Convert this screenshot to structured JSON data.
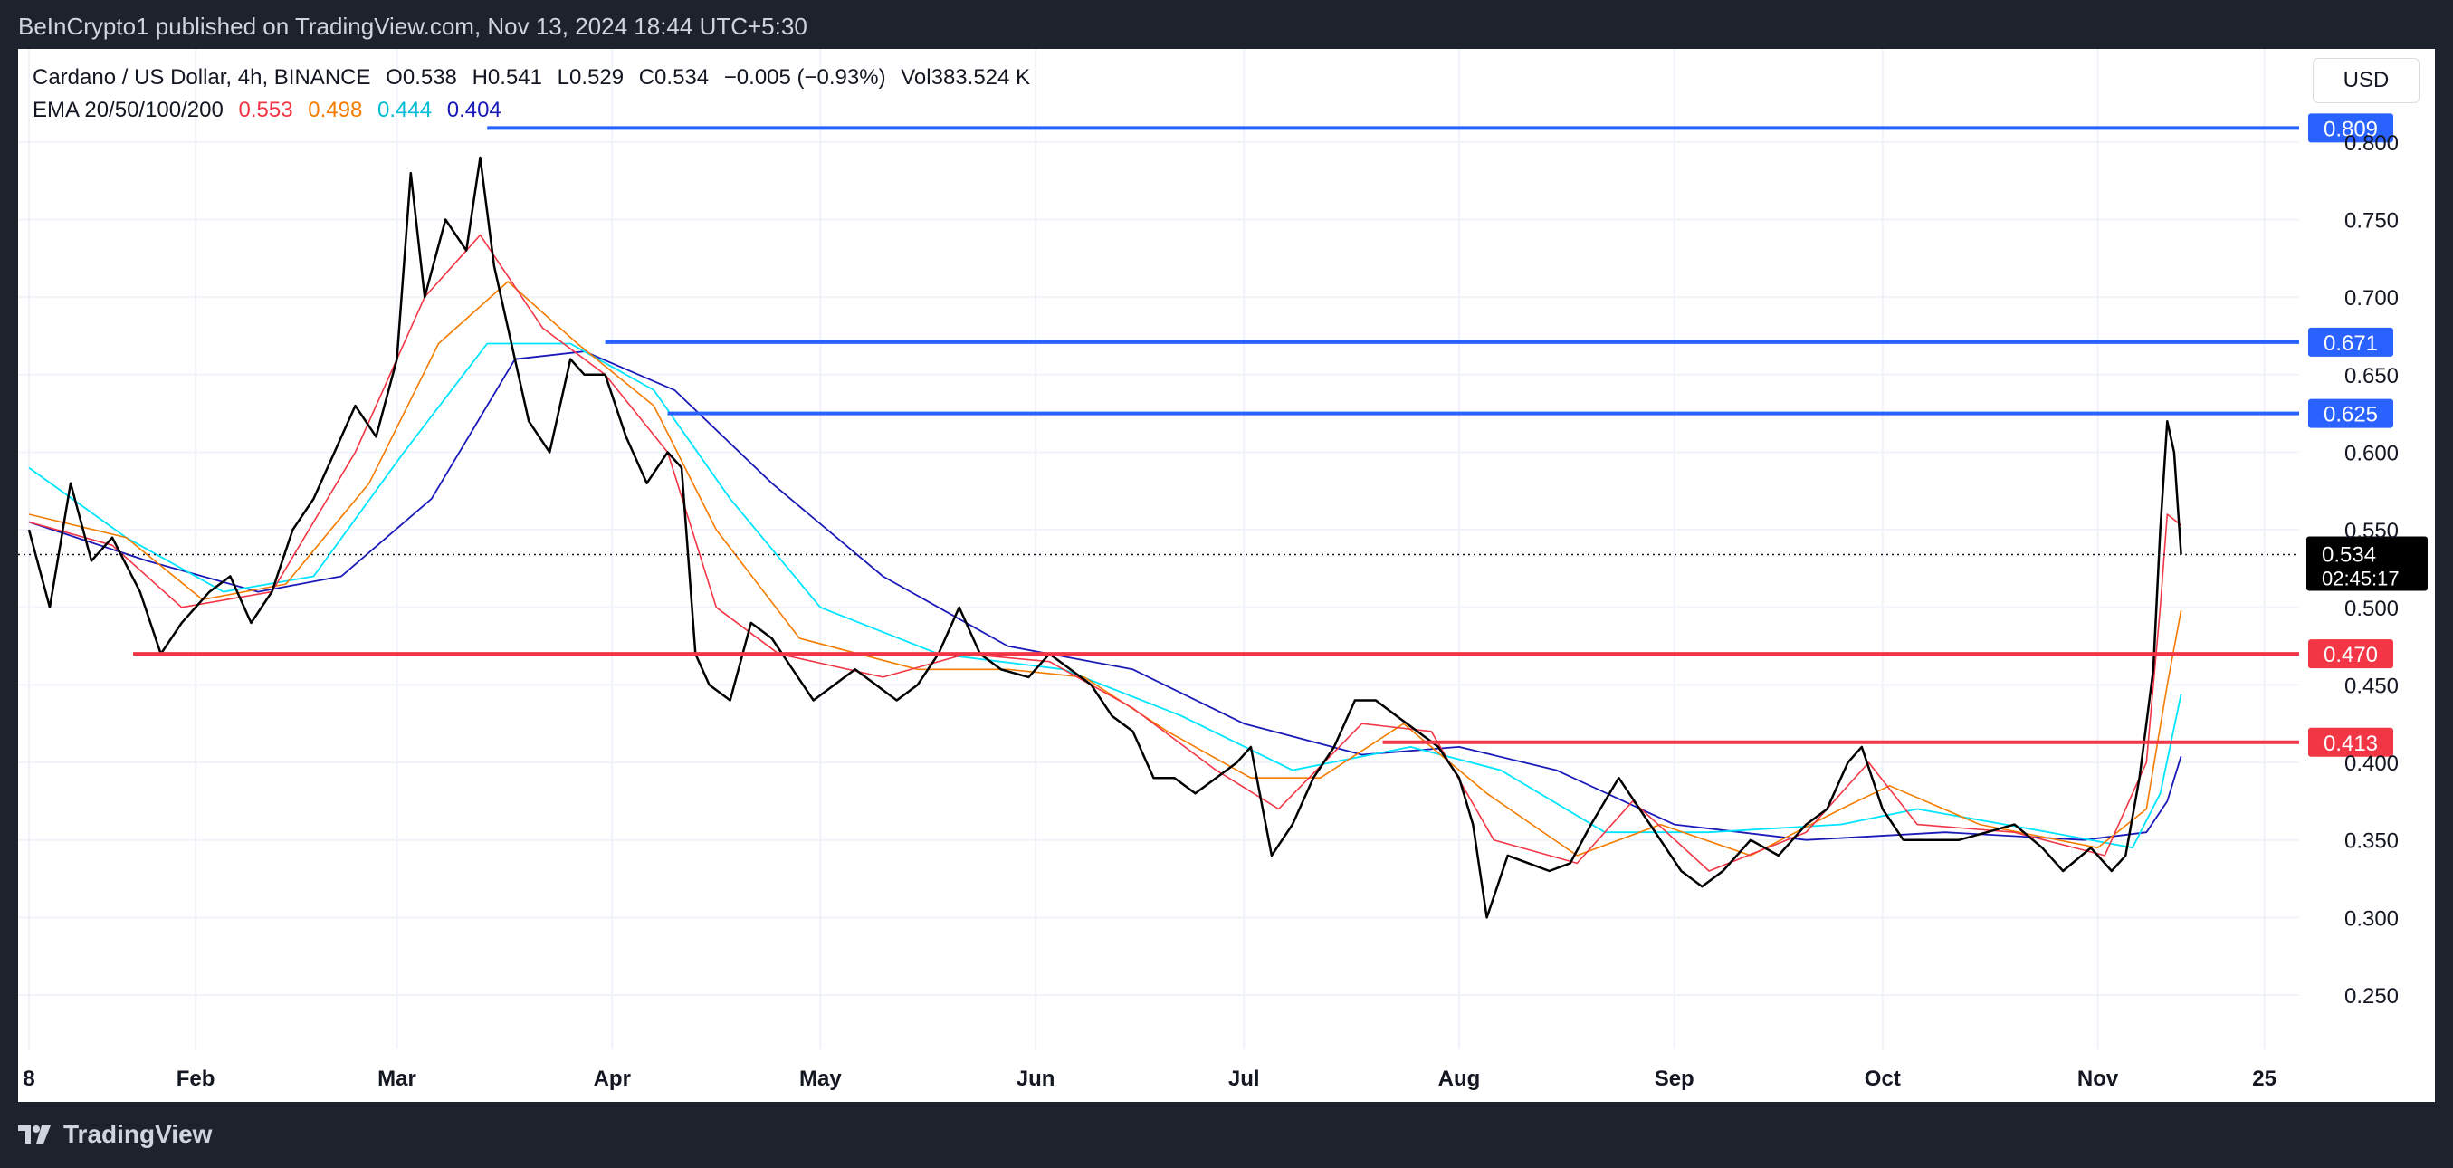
{
  "header": {
    "published": "BeInCrypto1 published on TradingView.com, Nov 13, 2024 18:44 UTC+5:30"
  },
  "legend": {
    "symbol": "Cardano / US Dollar, 4h, BINANCE",
    "open": "O0.538",
    "high": "H0.541",
    "low": "L0.529",
    "close": "C0.534",
    "change": "−0.005 (−0.93%)",
    "volume": "Vol383.524 K",
    "ema_label": "EMA 20/50/100/200",
    "ema20": "0.553",
    "ema50": "0.498",
    "ema100": "0.444",
    "ema200": "0.404"
  },
  "currency": "USD",
  "footer": {
    "brand": "TradingView"
  },
  "colors": {
    "resistance": "#2962ff",
    "support": "#f23645",
    "ema20": "#f23645",
    "ema50": "#f57c00",
    "ema100": "#00e5ff",
    "ema200": "#1a1ab8",
    "candles": "#000000"
  },
  "chart_data": {
    "type": "line",
    "ylim": [
      0.215,
      0.825
    ],
    "xlim": [
      "2024-01-08",
      "2024-11-30"
    ],
    "y_ticks": [
      "0.250",
      "0.300",
      "0.350",
      "0.400",
      "0.450",
      "0.500",
      "0.550",
      "0.600",
      "0.650",
      "0.700",
      "0.750",
      "0.800"
    ],
    "x_ticks": [
      {
        "label": "8",
        "date": "2024-01-08"
      },
      {
        "label": "Feb",
        "date": "2024-02-01"
      },
      {
        "label": "Mar",
        "date": "2024-03-01"
      },
      {
        "label": "Apr",
        "date": "2024-04-01"
      },
      {
        "label": "May",
        "date": "2024-05-01"
      },
      {
        "label": "Jun",
        "date": "2024-06-01"
      },
      {
        "label": "Jul",
        "date": "2024-07-01"
      },
      {
        "label": "Aug",
        "date": "2024-08-01"
      },
      {
        "label": "Sep",
        "date": "2024-09-01"
      },
      {
        "label": "Oct",
        "date": "2024-10-01"
      },
      {
        "label": "Nov",
        "date": "2024-11-01"
      },
      {
        "label": "25",
        "date": "2024-11-25"
      }
    ],
    "series": [
      {
        "key": "price",
        "points": [
          [
            "2024-01-08",
            0.55
          ],
          [
            "2024-01-11",
            0.5
          ],
          [
            "2024-01-14",
            0.58
          ],
          [
            "2024-01-17",
            0.53
          ],
          [
            "2024-01-20",
            0.545
          ],
          [
            "2024-01-24",
            0.51
          ],
          [
            "2024-01-27",
            0.47
          ],
          [
            "2024-01-30",
            0.49
          ],
          [
            "2024-02-03",
            0.51
          ],
          [
            "2024-02-06",
            0.52
          ],
          [
            "2024-02-09",
            0.49
          ],
          [
            "2024-02-12",
            0.51
          ],
          [
            "2024-02-15",
            0.55
          ],
          [
            "2024-02-18",
            0.57
          ],
          [
            "2024-02-21",
            0.6
          ],
          [
            "2024-02-24",
            0.63
          ],
          [
            "2024-02-27",
            0.61
          ],
          [
            "2024-03-01",
            0.66
          ],
          [
            "2024-03-03",
            0.78
          ],
          [
            "2024-03-05",
            0.7
          ],
          [
            "2024-03-08",
            0.75
          ],
          [
            "2024-03-11",
            0.73
          ],
          [
            "2024-03-13",
            0.79
          ],
          [
            "2024-03-15",
            0.72
          ],
          [
            "2024-03-17",
            0.68
          ],
          [
            "2024-03-20",
            0.62
          ],
          [
            "2024-03-23",
            0.6
          ],
          [
            "2024-03-26",
            0.66
          ],
          [
            "2024-03-28",
            0.65
          ],
          [
            "2024-03-31",
            0.65
          ],
          [
            "2024-04-03",
            0.61
          ],
          [
            "2024-04-06",
            0.58
          ],
          [
            "2024-04-09",
            0.6
          ],
          [
            "2024-04-11",
            0.59
          ],
          [
            "2024-04-13",
            0.47
          ],
          [
            "2024-04-15",
            0.45
          ],
          [
            "2024-04-18",
            0.44
          ],
          [
            "2024-04-21",
            0.49
          ],
          [
            "2024-04-24",
            0.48
          ],
          [
            "2024-04-27",
            0.46
          ],
          [
            "2024-04-30",
            0.44
          ],
          [
            "2024-05-03",
            0.45
          ],
          [
            "2024-05-06",
            0.46
          ],
          [
            "2024-05-09",
            0.45
          ],
          [
            "2024-05-12",
            0.44
          ],
          [
            "2024-05-15",
            0.45
          ],
          [
            "2024-05-18",
            0.47
          ],
          [
            "2024-05-21",
            0.5
          ],
          [
            "2024-05-24",
            0.47
          ],
          [
            "2024-05-27",
            0.46
          ],
          [
            "2024-05-31",
            0.455
          ],
          [
            "2024-06-03",
            0.47
          ],
          [
            "2024-06-06",
            0.46
          ],
          [
            "2024-06-09",
            0.45
          ],
          [
            "2024-06-12",
            0.43
          ],
          [
            "2024-06-15",
            0.42
          ],
          [
            "2024-06-18",
            0.39
          ],
          [
            "2024-06-21",
            0.39
          ],
          [
            "2024-06-24",
            0.38
          ],
          [
            "2024-06-27",
            0.39
          ],
          [
            "2024-06-30",
            0.4
          ],
          [
            "2024-07-02",
            0.41
          ],
          [
            "2024-07-05",
            0.34
          ],
          [
            "2024-07-08",
            0.36
          ],
          [
            "2024-07-11",
            0.39
          ],
          [
            "2024-07-14",
            0.41
          ],
          [
            "2024-07-17",
            0.44
          ],
          [
            "2024-07-20",
            0.44
          ],
          [
            "2024-07-23",
            0.43
          ],
          [
            "2024-07-26",
            0.42
          ],
          [
            "2024-07-29",
            0.41
          ],
          [
            "2024-08-01",
            0.39
          ],
          [
            "2024-08-03",
            0.36
          ],
          [
            "2024-08-05",
            0.3
          ],
          [
            "2024-08-08",
            0.34
          ],
          [
            "2024-08-11",
            0.335
          ],
          [
            "2024-08-14",
            0.33
          ],
          [
            "2024-08-17",
            0.335
          ],
          [
            "2024-08-20",
            0.36
          ],
          [
            "2024-08-24",
            0.39
          ],
          [
            "2024-08-27",
            0.37
          ],
          [
            "2024-08-30",
            0.35
          ],
          [
            "2024-09-02",
            0.33
          ],
          [
            "2024-09-05",
            0.32
          ],
          [
            "2024-09-08",
            0.33
          ],
          [
            "2024-09-12",
            0.35
          ],
          [
            "2024-09-16",
            0.34
          ],
          [
            "2024-09-20",
            0.36
          ],
          [
            "2024-09-23",
            0.37
          ],
          [
            "2024-09-26",
            0.4
          ],
          [
            "2024-09-28",
            0.41
          ],
          [
            "2024-10-01",
            0.37
          ],
          [
            "2024-10-04",
            0.35
          ],
          [
            "2024-10-08",
            0.35
          ],
          [
            "2024-10-12",
            0.35
          ],
          [
            "2024-10-16",
            0.355
          ],
          [
            "2024-10-20",
            0.36
          ],
          [
            "2024-10-24",
            0.345
          ],
          [
            "2024-10-27",
            0.33
          ],
          [
            "2024-10-31",
            0.345
          ],
          [
            "2024-11-03",
            0.33
          ],
          [
            "2024-11-05",
            0.34
          ],
          [
            "2024-11-07",
            0.39
          ],
          [
            "2024-11-09",
            0.46
          ],
          [
            "2024-11-10",
            0.55
          ],
          [
            "2024-11-11",
            0.62
          ],
          [
            "2024-11-12",
            0.6
          ],
          [
            "2024-11-13",
            0.534
          ]
        ]
      },
      {
        "key": "ema20",
        "points": [
          [
            "2024-01-08",
            0.555
          ],
          [
            "2024-01-20",
            0.54
          ],
          [
            "2024-01-30",
            0.5
          ],
          [
            "2024-02-12",
            0.51
          ],
          [
            "2024-02-24",
            0.6
          ],
          [
            "2024-03-05",
            0.7
          ],
          [
            "2024-03-13",
            0.74
          ],
          [
            "2024-03-22",
            0.68
          ],
          [
            "2024-03-31",
            0.65
          ],
          [
            "2024-04-09",
            0.6
          ],
          [
            "2024-04-16",
            0.5
          ],
          [
            "2024-04-25",
            0.47
          ],
          [
            "2024-05-10",
            0.455
          ],
          [
            "2024-05-22",
            0.47
          ],
          [
            "2024-06-03",
            0.465
          ],
          [
            "2024-06-15",
            0.435
          ],
          [
            "2024-06-27",
            0.395
          ],
          [
            "2024-07-06",
            0.37
          ],
          [
            "2024-07-18",
            0.425
          ],
          [
            "2024-07-28",
            0.42
          ],
          [
            "2024-08-06",
            0.35
          ],
          [
            "2024-08-18",
            0.335
          ],
          [
            "2024-08-26",
            0.375
          ],
          [
            "2024-09-06",
            0.33
          ],
          [
            "2024-09-20",
            0.355
          ],
          [
            "2024-09-29",
            0.4
          ],
          [
            "2024-10-06",
            0.36
          ],
          [
            "2024-10-20",
            0.355
          ],
          [
            "2024-11-02",
            0.34
          ],
          [
            "2024-11-08",
            0.4
          ],
          [
            "2024-11-10",
            0.5
          ],
          [
            "2024-11-11",
            0.56
          ],
          [
            "2024-11-13",
            0.553
          ]
        ]
      },
      {
        "key": "ema50",
        "points": [
          [
            "2024-01-08",
            0.56
          ],
          [
            "2024-01-22",
            0.545
          ],
          [
            "2024-02-02",
            0.505
          ],
          [
            "2024-02-14",
            0.515
          ],
          [
            "2024-02-26",
            0.58
          ],
          [
            "2024-03-07",
            0.67
          ],
          [
            "2024-03-17",
            0.71
          ],
          [
            "2024-03-27",
            0.67
          ],
          [
            "2024-04-07",
            0.63
          ],
          [
            "2024-04-16",
            0.55
          ],
          [
            "2024-04-28",
            0.48
          ],
          [
            "2024-05-15",
            0.46
          ],
          [
            "2024-05-28",
            0.46
          ],
          [
            "2024-06-08",
            0.455
          ],
          [
            "2024-06-20",
            0.42
          ],
          [
            "2024-07-02",
            0.39
          ],
          [
            "2024-07-12",
            0.39
          ],
          [
            "2024-07-24",
            0.425
          ],
          [
            "2024-08-05",
            0.38
          ],
          [
            "2024-08-18",
            0.34
          ],
          [
            "2024-08-30",
            0.36
          ],
          [
            "2024-09-12",
            0.34
          ],
          [
            "2024-09-25",
            0.37
          ],
          [
            "2024-10-02",
            0.385
          ],
          [
            "2024-10-15",
            0.36
          ],
          [
            "2024-11-01",
            0.345
          ],
          [
            "2024-11-08",
            0.37
          ],
          [
            "2024-11-11",
            0.45
          ],
          [
            "2024-11-13",
            0.498
          ]
        ]
      },
      {
        "key": "ema100",
        "points": [
          [
            "2024-01-08",
            0.59
          ],
          [
            "2024-01-22",
            0.545
          ],
          [
            "2024-02-05",
            0.51
          ],
          [
            "2024-02-18",
            0.52
          ],
          [
            "2024-03-02",
            0.6
          ],
          [
            "2024-03-14",
            0.67
          ],
          [
            "2024-03-26",
            0.67
          ],
          [
            "2024-04-07",
            0.64
          ],
          [
            "2024-04-18",
            0.57
          ],
          [
            "2024-05-01",
            0.5
          ],
          [
            "2024-05-18",
            0.47
          ],
          [
            "2024-06-05",
            0.46
          ],
          [
            "2024-06-22",
            0.43
          ],
          [
            "2024-07-08",
            0.395
          ],
          [
            "2024-07-25",
            0.41
          ],
          [
            "2024-08-07",
            0.395
          ],
          [
            "2024-08-22",
            0.355
          ],
          [
            "2024-09-06",
            0.355
          ],
          [
            "2024-09-25",
            0.36
          ],
          [
            "2024-10-06",
            0.37
          ],
          [
            "2024-10-25",
            0.355
          ],
          [
            "2024-11-06",
            0.345
          ],
          [
            "2024-11-10",
            0.38
          ],
          [
            "2024-11-13",
            0.444
          ]
        ]
      },
      {
        "key": "ema200",
        "points": [
          [
            "2024-01-08",
            0.555
          ],
          [
            "2024-01-25",
            0.53
          ],
          [
            "2024-02-10",
            0.51
          ],
          [
            "2024-02-22",
            0.52
          ],
          [
            "2024-03-06",
            0.57
          ],
          [
            "2024-03-18",
            0.66
          ],
          [
            "2024-03-28",
            0.665
          ],
          [
            "2024-04-10",
            0.64
          ],
          [
            "2024-04-24",
            0.58
          ],
          [
            "2024-05-10",
            0.52
          ],
          [
            "2024-05-28",
            0.475
          ],
          [
            "2024-06-15",
            0.46
          ],
          [
            "2024-07-01",
            0.425
          ],
          [
            "2024-07-18",
            0.405
          ],
          [
            "2024-08-01",
            0.41
          ],
          [
            "2024-08-15",
            0.395
          ],
          [
            "2024-09-01",
            0.36
          ],
          [
            "2024-09-20",
            0.35
          ],
          [
            "2024-10-10",
            0.355
          ],
          [
            "2024-10-30",
            0.35
          ],
          [
            "2024-11-08",
            0.355
          ],
          [
            "2024-11-11",
            0.375
          ],
          [
            "2024-11-13",
            0.404
          ]
        ]
      }
    ],
    "levels": [
      {
        "value": 0.809,
        "label": "0.809",
        "kind": "resistance",
        "from": "2024-03-14"
      },
      {
        "value": 0.671,
        "label": "0.671",
        "kind": "resistance",
        "from": "2024-03-31"
      },
      {
        "value": 0.625,
        "label": "0.625",
        "kind": "resistance",
        "from": "2024-04-09"
      },
      {
        "value": 0.47,
        "label": "0.470",
        "kind": "support",
        "from": "2024-01-23"
      },
      {
        "value": 0.413,
        "label": "0.413",
        "kind": "support",
        "from": "2024-07-21"
      }
    ],
    "current": {
      "value": 0.534,
      "label": "0.534",
      "countdown": "02:45:17"
    }
  }
}
